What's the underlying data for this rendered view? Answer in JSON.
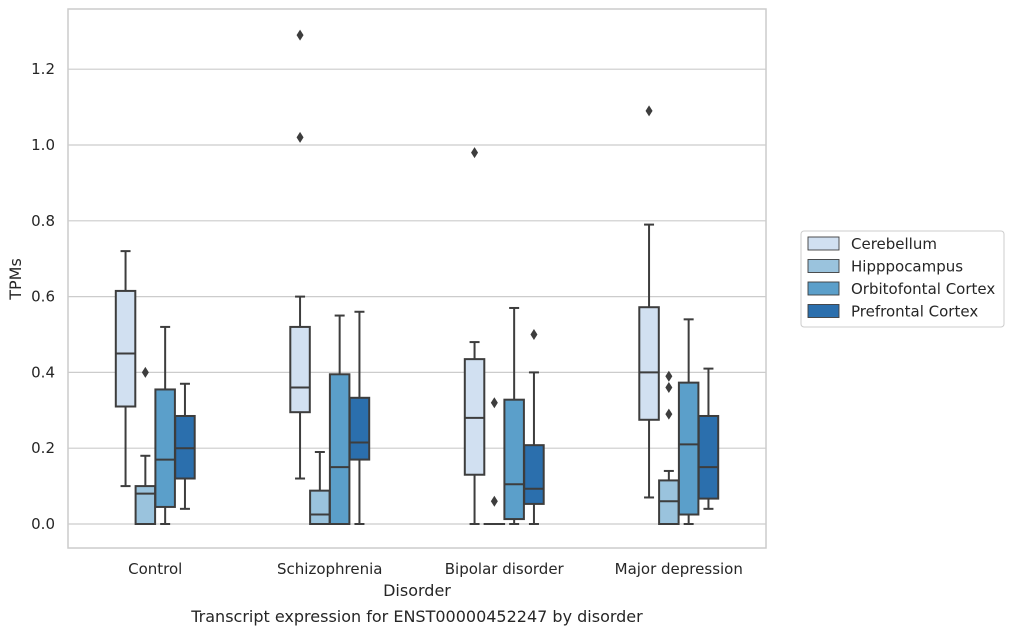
{
  "chart_data": {
    "type": "box",
    "title": "",
    "caption": "Transcript expression for ENST00000452247 by disorder",
    "xlabel": "Disorder",
    "ylabel": "TPMs",
    "ylim": [
      -0.065,
      1.36
    ],
    "yticks": [
      0.0,
      0.2,
      0.4,
      0.6,
      0.8,
      1.0,
      1.2
    ],
    "ytick_labels": [
      "0.0",
      "0.2",
      "0.4",
      "0.6",
      "0.8",
      "1.0",
      "1.2"
    ],
    "grid": "horizontal",
    "legend_placement": "right-center",
    "categories": [
      "Control",
      "Schizophrenia",
      "Bipolar disorder",
      "Major depression"
    ],
    "series": [
      {
        "name": "Cerebellum",
        "color": "#d1e0f1",
        "boxes": [
          {
            "whisker_low": 0.1,
            "q1": 0.31,
            "median": 0.45,
            "q3": 0.615,
            "whisker_high": 0.72,
            "outliers": []
          },
          {
            "whisker_low": 0.12,
            "q1": 0.295,
            "median": 0.36,
            "q3": 0.52,
            "whisker_high": 0.6,
            "outliers": [
              1.02,
              1.29
            ]
          },
          {
            "whisker_low": 0.0,
            "q1": 0.13,
            "median": 0.28,
            "q3": 0.435,
            "whisker_high": 0.48,
            "outliers": [
              0.98
            ]
          },
          {
            "whisker_low": 0.07,
            "q1": 0.275,
            "median": 0.4,
            "q3": 0.572,
            "whisker_high": 0.79,
            "outliers": [
              1.09
            ]
          }
        ]
      },
      {
        "name": "Hipppocampus",
        "color": "#9ac3dd",
        "boxes": [
          {
            "whisker_low": 0.0,
            "q1": 0.0,
            "median": 0.08,
            "q3": 0.1,
            "whisker_high": 0.18,
            "outliers": [
              0.4
            ]
          },
          {
            "whisker_low": 0.0,
            "q1": 0.0,
            "median": 0.025,
            "q3": 0.088,
            "whisker_high": 0.19,
            "outliers": []
          },
          {
            "whisker_low": 0.0,
            "q1": 0.0,
            "median": 0.0,
            "q3": 0.0,
            "whisker_high": 0.0,
            "outliers": [
              0.06,
              0.32
            ]
          },
          {
            "whisker_low": 0.0,
            "q1": 0.0,
            "median": 0.06,
            "q3": 0.115,
            "whisker_high": 0.14,
            "outliers": [
              0.29,
              0.36,
              0.39
            ]
          }
        ]
      },
      {
        "name": "Orbitofontal Cortex",
        "color": "#5b9fca",
        "boxes": [
          {
            "whisker_low": 0.0,
            "q1": 0.045,
            "median": 0.17,
            "q3": 0.355,
            "whisker_high": 0.52,
            "outliers": []
          },
          {
            "whisker_low": 0.0,
            "q1": 0.0,
            "median": 0.15,
            "q3": 0.395,
            "whisker_high": 0.55,
            "outliers": []
          },
          {
            "whisker_low": 0.0,
            "q1": 0.013,
            "median": 0.105,
            "q3": 0.328,
            "whisker_high": 0.57,
            "outliers": []
          },
          {
            "whisker_low": 0.0,
            "q1": 0.025,
            "median": 0.21,
            "q3": 0.373,
            "whisker_high": 0.54,
            "outliers": []
          }
        ]
      },
      {
        "name": "Prefrontal Cortex",
        "color": "#2b6fad",
        "boxes": [
          {
            "whisker_low": 0.04,
            "q1": 0.12,
            "median": 0.2,
            "q3": 0.285,
            "whisker_high": 0.37,
            "outliers": []
          },
          {
            "whisker_low": 0.0,
            "q1": 0.17,
            "median": 0.215,
            "q3": 0.333,
            "whisker_high": 0.56,
            "outliers": []
          },
          {
            "whisker_low": 0.0,
            "q1": 0.053,
            "median": 0.093,
            "q3": 0.208,
            "whisker_high": 0.4,
            "outliers": [
              0.5
            ]
          },
          {
            "whisker_low": 0.04,
            "q1": 0.067,
            "median": 0.15,
            "q3": 0.285,
            "whisker_high": 0.41,
            "outliers": []
          }
        ]
      }
    ]
  }
}
